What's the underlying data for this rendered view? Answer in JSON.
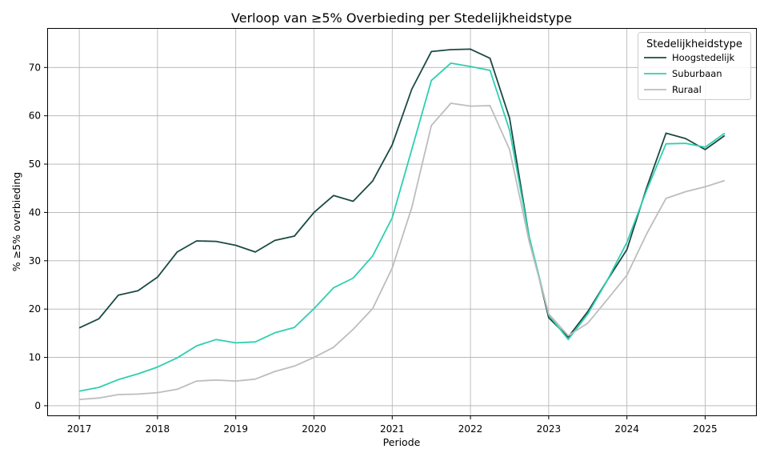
{
  "chart_data": {
    "type": "line",
    "title": "Verloop van ≥5% Overbieding per Stedelijkheidstype",
    "xlabel": "Periode",
    "ylabel": "% ≥5% overbieding",
    "xlim": [
      2016.6,
      2025.65
    ],
    "ylim": [
      -2,
      78
    ],
    "x_ticks": [
      2017,
      2018,
      2019,
      2020,
      2021,
      2022,
      2023,
      2024,
      2025
    ],
    "y_ticks": [
      0,
      10,
      20,
      30,
      40,
      50,
      60,
      70
    ],
    "grid": true,
    "legend": {
      "title": "Stedelijkheidstype",
      "placement": "top-right"
    },
    "x": [
      2017.0,
      2017.25,
      2017.5,
      2017.75,
      2018.0,
      2018.25,
      2018.5,
      2018.75,
      2019.0,
      2019.25,
      2019.5,
      2019.75,
      2020.0,
      2020.25,
      2020.5,
      2020.75,
      2021.0,
      2021.25,
      2021.5,
      2021.75,
      2022.0,
      2022.25,
      2022.5,
      2022.75,
      2023.0,
      2023.25,
      2023.5,
      2023.75,
      2024.0,
      2024.25,
      2024.5,
      2024.75,
      2025.0,
      2025.25
    ],
    "series": [
      {
        "name": "Hoogstedelijk",
        "color": "#1b4a43",
        "values": [
          16.1,
          18.0,
          22.9,
          23.8,
          26.6,
          31.8,
          34.1,
          34.0,
          33.2,
          31.8,
          34.2,
          35.1,
          40.0,
          43.5,
          42.3,
          46.5,
          54.0,
          65.5,
          73.3,
          73.7,
          73.8,
          71.9,
          59.5,
          35.0,
          18.2,
          14.2,
          19.5,
          26.0,
          32.3,
          45.0,
          56.4,
          55.3,
          53.0,
          55.9
        ]
      },
      {
        "name": "Suburbaan",
        "color": "#2ecfb0",
        "values": [
          3.0,
          3.8,
          5.4,
          6.6,
          8.0,
          9.9,
          12.4,
          13.7,
          13.0,
          13.2,
          15.1,
          16.2,
          20.1,
          24.4,
          26.4,
          31.0,
          38.9,
          53.0,
          67.3,
          70.9,
          70.2,
          69.4,
          57.0,
          35.0,
          18.8,
          13.7,
          19.0,
          26.0,
          33.8,
          44.5,
          54.2,
          54.3,
          53.5,
          56.4
        ]
      },
      {
        "name": "Ruraal",
        "color": "#bdbdbd",
        "values": [
          1.3,
          1.6,
          2.3,
          2.4,
          2.7,
          3.4,
          5.1,
          5.3,
          5.1,
          5.5,
          7.1,
          8.2,
          10.0,
          12.1,
          15.8,
          20.1,
          28.5,
          41.0,
          58.0,
          62.6,
          62.0,
          62.1,
          53.0,
          34.0,
          19.0,
          14.5,
          17.1,
          22.0,
          27.0,
          35.5,
          42.9,
          44.3,
          45.3,
          46.6
        ]
      }
    ]
  }
}
